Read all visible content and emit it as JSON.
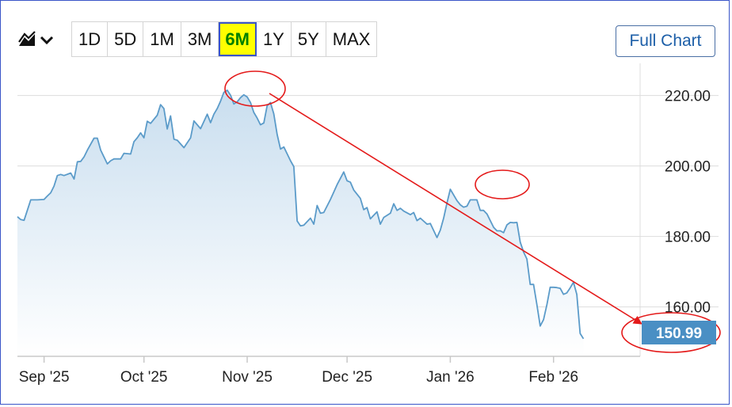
{
  "toolbar": {
    "chart_type_icon": "area-chart-icon",
    "ranges": [
      "1D",
      "5D",
      "1M",
      "3M",
      "6M",
      "1Y",
      "5Y",
      "MAX"
    ],
    "active_range": "6M",
    "full_chart_label": "Full Chart"
  },
  "colors": {
    "line": "#5b9bc9",
    "area_top": "#c9deef",
    "area_bottom": "#ffffff",
    "annotation": "#e41a1a",
    "last_price_bg": "#4a8fc4",
    "grid": "#dddddd"
  },
  "chart_data": {
    "type": "area",
    "title": "",
    "xlabel": "",
    "ylabel": "",
    "ylim": [
      146,
      228
    ],
    "x_range": [
      "2025-08-24",
      "2026-02-27"
    ],
    "yticks": [
      {
        "value": 220,
        "label": "220.00"
      },
      {
        "value": 200,
        "label": "200.00"
      },
      {
        "value": 180,
        "label": "180.00"
      },
      {
        "value": 160,
        "label": "160.00"
      }
    ],
    "xticks": [
      {
        "date": "2025-09-01",
        "label": "Sep '25"
      },
      {
        "date": "2025-10-01",
        "label": "Oct '25"
      },
      {
        "date": "2025-11-01",
        "label": "Nov '25"
      },
      {
        "date": "2025-12-01",
        "label": "Dec '25"
      },
      {
        "date": "2026-01-01",
        "label": "Jan '26"
      },
      {
        "date": "2026-02-01",
        "label": "Feb '26"
      }
    ],
    "grid": true,
    "last_price": {
      "value": 150.99,
      "label": "150.99"
    },
    "series": [
      {
        "points": [
          [
            "2025-08-24",
            185.6
          ],
          [
            "2025-08-25",
            184.8
          ],
          [
            "2025-08-26",
            184.6
          ],
          [
            "2025-08-27",
            187.5
          ],
          [
            "2025-08-28",
            190.4
          ],
          [
            "2025-08-30",
            190.4
          ],
          [
            "2025-09-01",
            190.5
          ],
          [
            "2025-09-02",
            191.5
          ],
          [
            "2025-09-03",
            192.4
          ],
          [
            "2025-09-04",
            194.3
          ],
          [
            "2025-09-05",
            197.3
          ],
          [
            "2025-09-06",
            197.6
          ],
          [
            "2025-09-07",
            197.3
          ],
          [
            "2025-09-09",
            198.0
          ],
          [
            "2025-09-10",
            196.3
          ],
          [
            "2025-09-11",
            201.2
          ],
          [
            "2025-09-12",
            201.3
          ],
          [
            "2025-09-13",
            202.6
          ],
          [
            "2025-09-14",
            204.5
          ],
          [
            "2025-09-16",
            207.9
          ],
          [
            "2025-09-17",
            207.9
          ],
          [
            "2025-09-18",
            204.5
          ],
          [
            "2025-09-20",
            200.6
          ],
          [
            "2025-09-21",
            201.5
          ],
          [
            "2025-09-22",
            202.0
          ],
          [
            "2025-09-24",
            202.0
          ],
          [
            "2025-09-25",
            203.6
          ],
          [
            "2025-09-27",
            203.4
          ],
          [
            "2025-09-28",
            206.9
          ],
          [
            "2025-09-29",
            208.0
          ],
          [
            "2025-09-30",
            209.4
          ],
          [
            "2025-10-01",
            208.0
          ],
          [
            "2025-10-02",
            212.7
          ],
          [
            "2025-10-03",
            212.1
          ],
          [
            "2025-10-05",
            214.4
          ],
          [
            "2025-10-06",
            217.4
          ],
          [
            "2025-10-07",
            216.3
          ],
          [
            "2025-10-08",
            210.5
          ],
          [
            "2025-10-09",
            214.2
          ],
          [
            "2025-10-10",
            207.6
          ],
          [
            "2025-10-11",
            207.3
          ],
          [
            "2025-10-13",
            205.2
          ],
          [
            "2025-10-15",
            208.0
          ],
          [
            "2025-10-16",
            212.8
          ],
          [
            "2025-10-18",
            210.6
          ],
          [
            "2025-10-20",
            214.7
          ],
          [
            "2025-10-21",
            212.3
          ],
          [
            "2025-10-22",
            214.7
          ],
          [
            "2025-10-23",
            216.3
          ],
          [
            "2025-10-24",
            218.4
          ],
          [
            "2025-10-25",
            220.9
          ],
          [
            "2025-10-26",
            221.5
          ],
          [
            "2025-10-27",
            220.1
          ],
          [
            "2025-10-28",
            217.6
          ],
          [
            "2025-10-29",
            218.2
          ],
          [
            "2025-10-30",
            219.4
          ],
          [
            "2025-10-31",
            220.2
          ],
          [
            "2025-11-01",
            219.6
          ],
          [
            "2025-11-02",
            218.0
          ],
          [
            "2025-11-03",
            215.2
          ],
          [
            "2025-11-04",
            213.6
          ],
          [
            "2025-11-05",
            211.7
          ],
          [
            "2025-11-06",
            212.2
          ],
          [
            "2025-11-07",
            217.1
          ],
          [
            "2025-11-08",
            218.0
          ],
          [
            "2025-11-09",
            214.8
          ],
          [
            "2025-11-10",
            208.9
          ],
          [
            "2025-11-11",
            204.8
          ],
          [
            "2025-11-12",
            205.4
          ],
          [
            "2025-11-14",
            201.5
          ],
          [
            "2025-11-15",
            199.8
          ],
          [
            "2025-11-16",
            184.4
          ],
          [
            "2025-11-17",
            183.0
          ],
          [
            "2025-11-18",
            183.2
          ],
          [
            "2025-11-20",
            185.2
          ],
          [
            "2025-11-21",
            183.5
          ],
          [
            "2025-11-22",
            188.8
          ],
          [
            "2025-11-23",
            186.6
          ],
          [
            "2025-11-24",
            186.8
          ],
          [
            "2025-11-26",
            190.5
          ],
          [
            "2025-11-27",
            192.6
          ],
          [
            "2025-11-28",
            194.7
          ],
          [
            "2025-11-30",
            198.3
          ],
          [
            "2025-12-01",
            195.8
          ],
          [
            "2025-12-02",
            195.4
          ],
          [
            "2025-12-03",
            193.2
          ],
          [
            "2025-12-05",
            190.8
          ],
          [
            "2025-12-06",
            187.6
          ],
          [
            "2025-12-07",
            188.2
          ],
          [
            "2025-12-08",
            185.0
          ],
          [
            "2025-12-10",
            187.0
          ],
          [
            "2025-12-11",
            183.5
          ],
          [
            "2025-12-12",
            185.4
          ],
          [
            "2025-12-14",
            186.6
          ],
          [
            "2025-12-15",
            189.3
          ],
          [
            "2025-12-16",
            187.4
          ],
          [
            "2025-12-17",
            188.0
          ],
          [
            "2025-12-18",
            187.2
          ],
          [
            "2025-12-20",
            186.2
          ],
          [
            "2025-12-21",
            186.8
          ],
          [
            "2025-12-22",
            184.5
          ],
          [
            "2025-12-23",
            185.2
          ],
          [
            "2025-12-25",
            183.5
          ],
          [
            "2025-12-26",
            183.7
          ],
          [
            "2025-12-28",
            179.7
          ],
          [
            "2025-12-29",
            181.8
          ],
          [
            "2025-12-30",
            185.2
          ],
          [
            "2025-12-31",
            189.5
          ],
          [
            "2026-01-01",
            193.4
          ],
          [
            "2026-01-03",
            190.2
          ],
          [
            "2026-01-04",
            189.0
          ],
          [
            "2026-01-05",
            188.3
          ],
          [
            "2026-01-06",
            188.6
          ],
          [
            "2026-01-07",
            190.4
          ],
          [
            "2026-01-09",
            190.4
          ],
          [
            "2026-01-10",
            187.4
          ],
          [
            "2026-01-11",
            187.4
          ],
          [
            "2026-01-12",
            186.4
          ],
          [
            "2026-01-14",
            182.6
          ],
          [
            "2026-01-15",
            181.6
          ],
          [
            "2026-01-16",
            181.6
          ],
          [
            "2026-01-17",
            181.1
          ],
          [
            "2026-01-18",
            183.3
          ],
          [
            "2026-01-19",
            184.0
          ],
          [
            "2026-01-20",
            183.9
          ],
          [
            "2026-01-21",
            184.0
          ],
          [
            "2026-01-22",
            178.4
          ],
          [
            "2026-01-23",
            175.6
          ],
          [
            "2026-01-24",
            173.6
          ],
          [
            "2026-01-25",
            166.4
          ],
          [
            "2026-01-26",
            166.4
          ],
          [
            "2026-01-27",
            160.7
          ],
          [
            "2026-01-28",
            154.6
          ],
          [
            "2026-01-29",
            156.4
          ],
          [
            "2026-01-30",
            160.6
          ],
          [
            "2026-01-31",
            165.6
          ],
          [
            "2026-02-01",
            165.6
          ],
          [
            "2026-02-02",
            165.5
          ],
          [
            "2026-02-03",
            165.3
          ],
          [
            "2026-02-04",
            163.6
          ],
          [
            "2026-02-05",
            164.0
          ],
          [
            "2026-02-06",
            165.4
          ],
          [
            "2026-02-07",
            167.0
          ],
          [
            "2026-02-08",
            163.6
          ],
          [
            "2026-02-09",
            152.5
          ],
          [
            "2026-02-10",
            150.99
          ]
        ]
      }
    ]
  }
}
